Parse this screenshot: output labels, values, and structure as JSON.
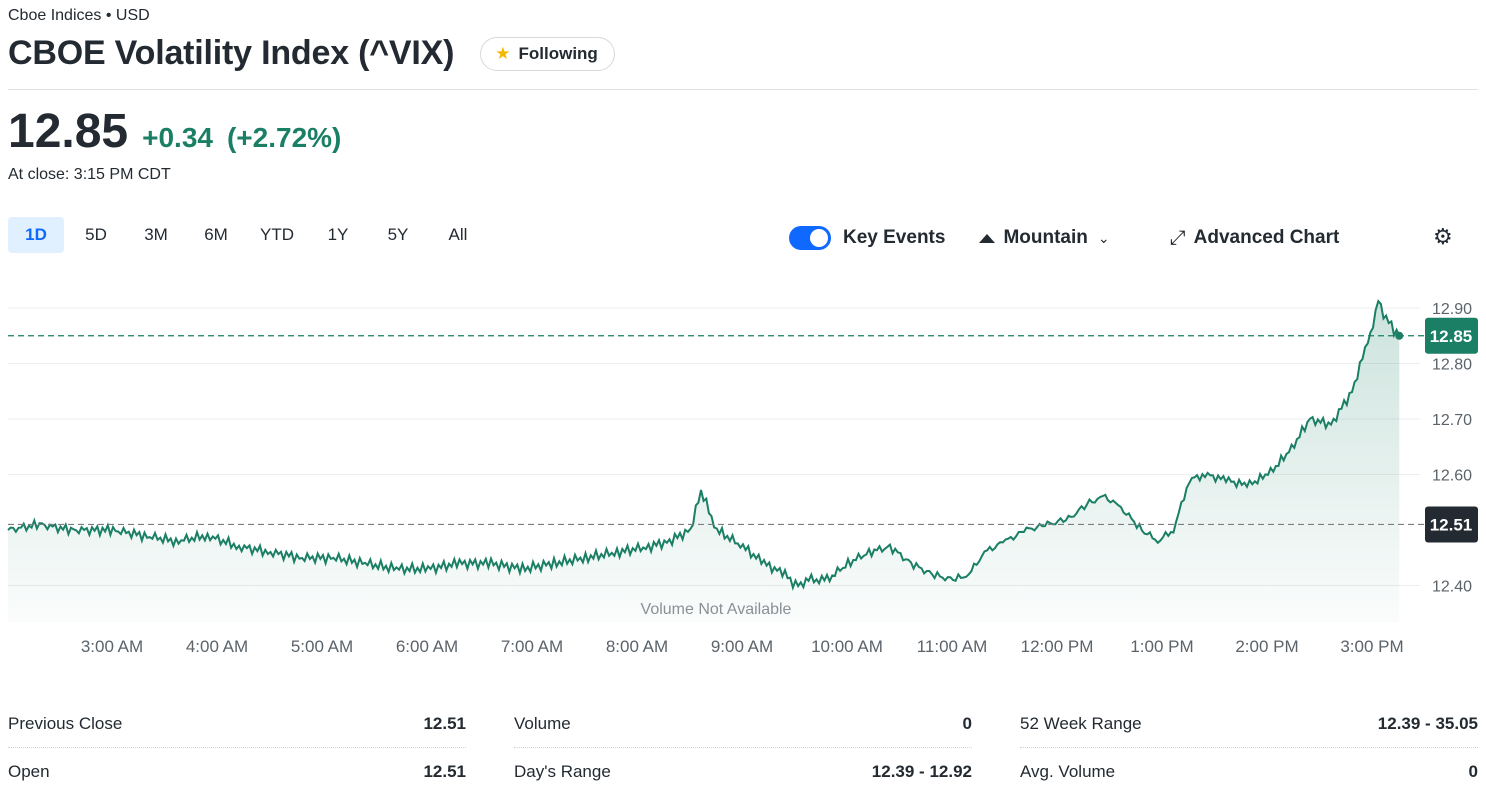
{
  "header": {
    "exchange": "Cboe Indices • USD",
    "title": "CBOE Volatility Index (^VIX)",
    "follow_label": "Following"
  },
  "quote": {
    "price": "12.85",
    "change": "+0.34",
    "change_pct": "(+2.72%)",
    "close_time": "At close: 3:15 PM CDT"
  },
  "ranges": [
    "1D",
    "5D",
    "3M",
    "6M",
    "YTD",
    "1Y",
    "5Y",
    "All"
  ],
  "active_range": "1D",
  "toolbar": {
    "key_events_label": "Key Events",
    "chart_type_label": "Mountain",
    "advanced_label": "Advanced Chart"
  },
  "colors": {
    "up": "#1a7f64",
    "accent": "#0f69ff",
    "prev_close_bg": "#232a31"
  },
  "chart_data": {
    "type": "area",
    "x_tick_labels": [
      "3:00 AM",
      "4:00 AM",
      "5:00 AM",
      "6:00 AM",
      "7:00 AM",
      "8:00 AM",
      "9:00 AM",
      "10:00 AM",
      "11:00 AM",
      "12:00 PM",
      "1:00 PM",
      "2:00 PM",
      "3:00 PM"
    ],
    "y_tick_labels": [
      "12.40",
      "12.60",
      "12.70",
      "12.80",
      "12.90"
    ],
    "ylim": [
      12.33,
      12.95
    ],
    "current_label": "12.85",
    "prev_close_label": "12.51",
    "current_value": 12.85,
    "prev_close_value": 12.51,
    "volume_note": "Volume Not Available",
    "x_hours": [
      2.0,
      2.3,
      2.6,
      3.0,
      3.3,
      3.6,
      3.9,
      4.2,
      4.5,
      4.8,
      5.1,
      5.4,
      5.7,
      6.0,
      6.3,
      6.6,
      6.9,
      7.2,
      7.5,
      7.8,
      8.1,
      8.3,
      8.5,
      8.6,
      8.75,
      9.0,
      9.2,
      9.4,
      9.5,
      9.65,
      9.8,
      10.0,
      10.2,
      10.4,
      10.6,
      10.8,
      11.0,
      11.15,
      11.3,
      11.5,
      11.7,
      11.9,
      12.1,
      12.3,
      12.45,
      12.6,
      12.8,
      12.95,
      13.1,
      13.25,
      13.4,
      13.6,
      13.8,
      14.0,
      14.2,
      14.4,
      14.6,
      14.8,
      14.95,
      15.0,
      15.05,
      15.1,
      15.2,
      15.25
    ],
    "values": [
      12.5,
      12.51,
      12.5,
      12.5,
      12.49,
      12.48,
      12.49,
      12.47,
      12.46,
      12.45,
      12.45,
      12.44,
      12.43,
      12.43,
      12.44,
      12.44,
      12.43,
      12.44,
      12.45,
      12.46,
      12.47,
      12.48,
      12.5,
      12.57,
      12.5,
      12.47,
      12.44,
      12.42,
      12.4,
      12.41,
      12.41,
      12.44,
      12.46,
      12.47,
      12.44,
      12.42,
      12.41,
      12.42,
      12.46,
      12.48,
      12.5,
      12.51,
      12.52,
      12.55,
      12.56,
      12.54,
      12.5,
      12.48,
      12.5,
      12.59,
      12.6,
      12.59,
      12.58,
      12.6,
      12.64,
      12.7,
      12.69,
      12.75,
      12.84,
      12.87,
      12.92,
      12.89,
      12.86,
      12.85
    ]
  },
  "stats": [
    {
      "label": "Previous Close",
      "value": "12.51"
    },
    {
      "label": "Open",
      "value": "12.51"
    },
    {
      "label": "Volume",
      "value": "0"
    },
    {
      "label": "Day's Range",
      "value": "12.39 - 12.92"
    },
    {
      "label": "52 Week Range",
      "value": "12.39 - 35.05"
    },
    {
      "label": "Avg. Volume",
      "value": "0"
    }
  ]
}
